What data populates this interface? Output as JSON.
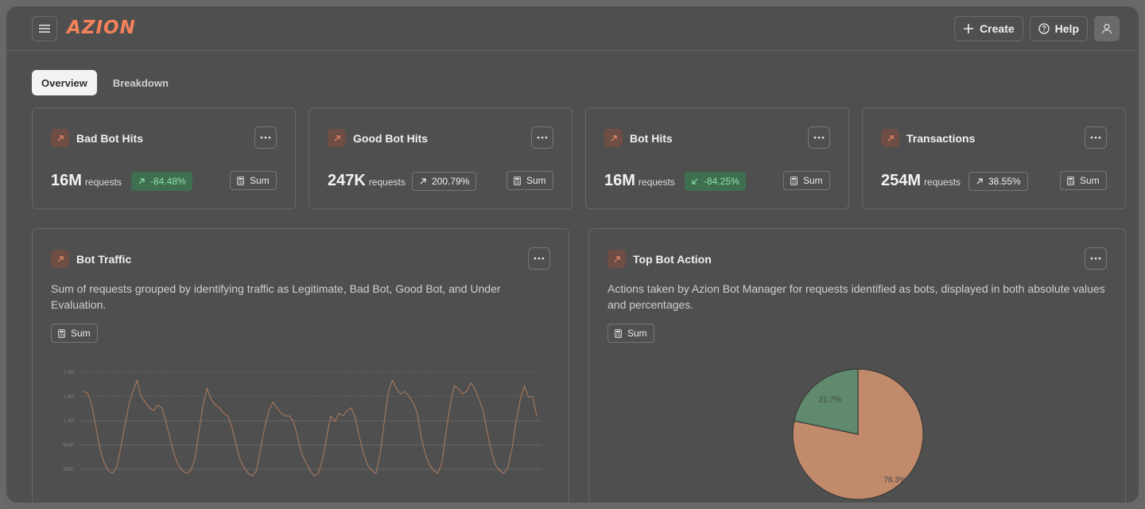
{
  "app": {
    "logo": "AZION"
  },
  "topbar": {
    "create_label": "Create",
    "help_label": "Help"
  },
  "tabs": [
    {
      "label": "Overview",
      "active": true
    },
    {
      "label": "Breakdown",
      "active": false
    }
  ],
  "kpis": [
    {
      "title": "Bad Bot Hits",
      "value": "16M",
      "unit": "requests",
      "delta": "-84.48%",
      "delta_dir": "up",
      "delta_style": "green",
      "agg": "Sum"
    },
    {
      "title": "Good Bot Hits",
      "value": "247K",
      "unit": "requests",
      "delta": "200.79%",
      "delta_dir": "up",
      "delta_style": "neutral",
      "agg": "Sum"
    },
    {
      "title": "Bot Hits",
      "value": "16M",
      "unit": "requests",
      "delta": "-84.25%",
      "delta_dir": "down",
      "delta_style": "green",
      "agg": "Sum"
    },
    {
      "title": "Transactions",
      "value": "254M",
      "unit": "requests",
      "delta": "38.55%",
      "delta_dir": "up",
      "delta_style": "neutral",
      "agg": "Sum"
    }
  ],
  "bot_traffic": {
    "title": "Bot Traffic",
    "description": "Sum of requests grouped by identifying traffic as Legitimate, Bad Bot, Good Bot, and Under Evaluation.",
    "agg": "Sum",
    "chart_data": {
      "type": "line",
      "y_ticks": [
        "2.2M",
        "1.8M",
        "1.3M",
        "900K",
        "425K"
      ],
      "ylim": [
        425000,
        2200000
      ],
      "series": [
        {
          "color": "#b07d5e",
          "values": [
            1.85,
            1.82,
            1.6,
            1.2,
            0.8,
            0.55,
            0.4,
            0.35,
            0.45,
            0.8,
            1.2,
            1.6,
            1.85,
            2.05,
            1.75,
            1.65,
            1.55,
            1.5,
            1.6,
            1.55,
            1.3,
            1.0,
            0.7,
            0.5,
            0.4,
            0.35,
            0.4,
            0.6,
            1.1,
            1.6,
            1.9,
            1.7,
            1.6,
            1.55,
            1.45,
            1.4,
            1.2,
            0.9,
            0.6,
            0.45,
            0.35,
            0.3,
            0.4,
            0.8,
            1.2,
            1.5,
            1.65,
            1.55,
            1.45,
            1.4,
            1.4,
            1.3,
            1.0,
            0.7,
            0.55,
            0.4,
            0.3,
            0.35,
            0.6,
            1.0,
            1.4,
            1.3,
            1.45,
            1.4,
            1.5,
            1.55,
            1.35,
            1.0,
            0.7,
            0.5,
            0.4,
            0.35,
            0.7,
            1.3,
            1.85,
            2.05,
            1.9,
            1.8,
            1.85,
            1.75,
            1.65,
            1.45,
            1.0,
            0.7,
            0.5,
            0.4,
            0.35,
            0.55,
            1.1,
            1.6,
            1.95,
            1.9,
            1.8,
            1.85,
            2.0,
            1.9,
            1.7,
            1.5,
            1.1,
            0.75,
            0.5,
            0.4,
            0.35,
            0.45,
            0.8,
            1.3,
            1.7,
            1.95,
            1.75,
            1.75,
            1.4
          ]
        }
      ]
    }
  },
  "top_bot_action": {
    "title": "Top Bot Action",
    "description": "Actions taken by Azion Bot Manager for requests identified as bots, displayed in both absolute values and percentages.",
    "agg": "Sum",
    "chart_data": {
      "type": "pie",
      "slices": [
        {
          "label": "78.3%",
          "value": 78.3,
          "color": "#c08a6b"
        },
        {
          "label": "21.7%",
          "value": 21.7,
          "color": "#5f8a6e"
        }
      ]
    }
  }
}
